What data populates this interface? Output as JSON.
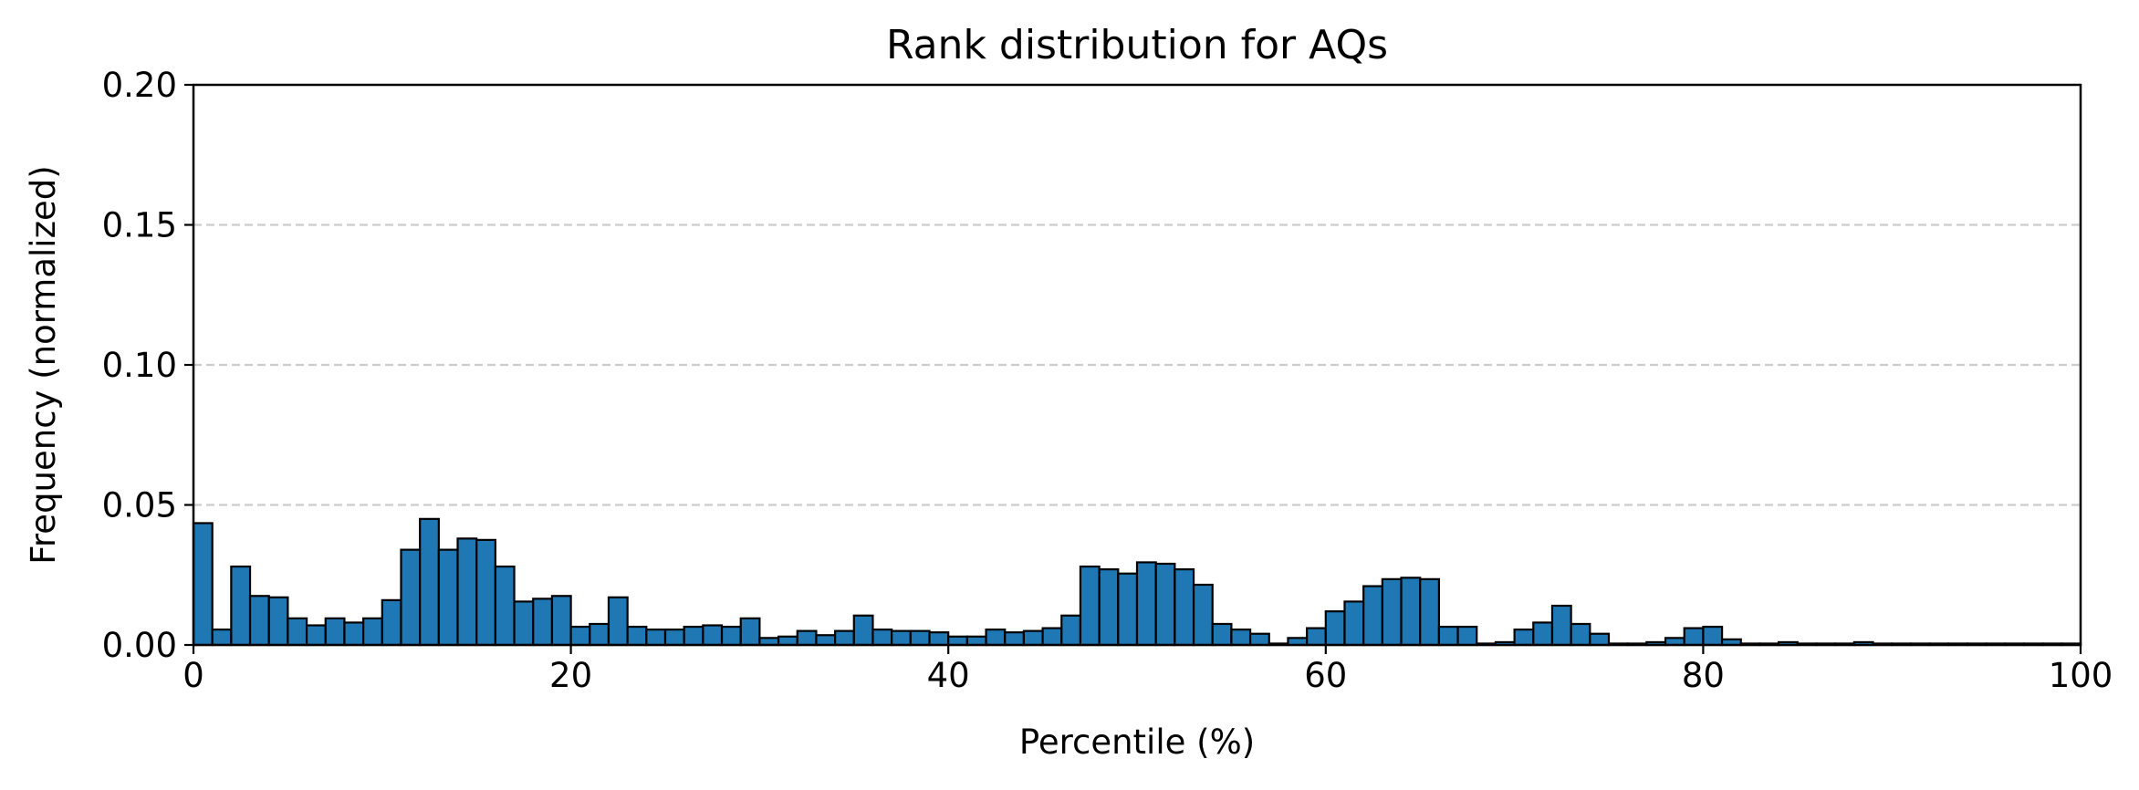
{
  "chart_data": {
    "type": "bar",
    "title": "Rank distribution for AQs",
    "xlabel": "Percentile (%)",
    "ylabel": "Frequency (normalized)",
    "xlim": [
      0,
      100
    ],
    "ylim": [
      0,
      0.2
    ],
    "xticks": [
      0,
      20,
      40,
      60,
      80,
      100
    ],
    "xtick_labels": [
      "0",
      "20",
      "40",
      "60",
      "80",
      "100"
    ],
    "yticks": [
      0,
      0.05,
      0.1,
      0.15,
      0.2
    ],
    "ytick_labels": [
      "0.00",
      "0.05",
      "0.10",
      "0.15",
      "0.20"
    ],
    "grid": "y-dashed",
    "bar_color": "#1f77b4",
    "edge_color": "#000000",
    "grid_color": "#cccccc",
    "bin_width": 1,
    "bin_starts": [
      0,
      1,
      2,
      3,
      4,
      5,
      6,
      7,
      8,
      9,
      10,
      11,
      12,
      13,
      14,
      15,
      16,
      17,
      18,
      19,
      20,
      21,
      22,
      23,
      24,
      25,
      26,
      27,
      28,
      29,
      30,
      31,
      32,
      33,
      34,
      35,
      36,
      37,
      38,
      39,
      40,
      41,
      42,
      43,
      44,
      45,
      46,
      47,
      48,
      49,
      50,
      51,
      52,
      53,
      54,
      55,
      56,
      57,
      58,
      59,
      60,
      61,
      62,
      63,
      64,
      65,
      66,
      67,
      68,
      69,
      70,
      71,
      72,
      73,
      74,
      75,
      76,
      77,
      78,
      79,
      80,
      81,
      82,
      83,
      84,
      85,
      86,
      87,
      88,
      89,
      90,
      91,
      92,
      93,
      94,
      95,
      96,
      97,
      98,
      99
    ],
    "values": [
      0.0435,
      0.0055,
      0.028,
      0.0175,
      0.017,
      0.0095,
      0.007,
      0.0095,
      0.008,
      0.0095,
      0.016,
      0.034,
      0.045,
      0.034,
      0.038,
      0.0375,
      0.028,
      0.0155,
      0.0165,
      0.0175,
      0.0065,
      0.0075,
      0.017,
      0.0065,
      0.0055,
      0.0055,
      0.0065,
      0.007,
      0.0065,
      0.0095,
      0.0025,
      0.003,
      0.005,
      0.0035,
      0.005,
      0.0105,
      0.0055,
      0.005,
      0.005,
      0.0045,
      0.003,
      0.003,
      0.0055,
      0.0045,
      0.005,
      0.006,
      0.0105,
      0.028,
      0.027,
      0.0255,
      0.0295,
      0.029,
      0.027,
      0.0215,
      0.0075,
      0.0055,
      0.004,
      0.0005,
      0.0025,
      0.006,
      0.012,
      0.0155,
      0.021,
      0.0235,
      0.024,
      0.0235,
      0.0065,
      0.0065,
      0.0005,
      0.001,
      0.0055,
      0.008,
      0.014,
      0.0075,
      0.004,
      0.0005,
      0.0005,
      0.001,
      0.0025,
      0.006,
      0.0065,
      0.002,
      0.0005,
      0.0005,
      0.001,
      0.0005,
      0.0005,
      0.0005,
      0.001,
      0.0005,
      0.0005,
      0.0005,
      0.0005,
      0.0005,
      0.0005,
      0.0005,
      0.0005,
      0.0005,
      0.0005,
      0.0005
    ]
  }
}
